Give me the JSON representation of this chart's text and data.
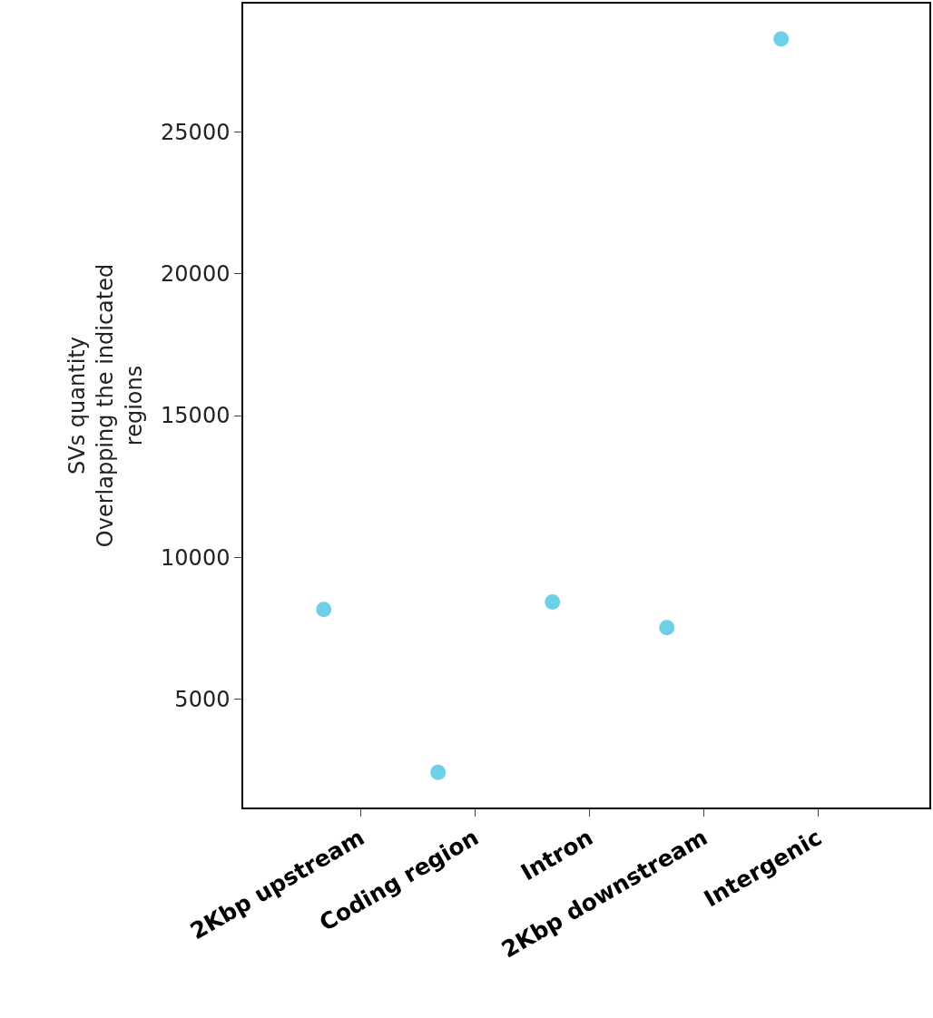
{
  "chart_data": {
    "type": "scatter",
    "ylabel": "SVs quantity\nOverlapping the indicated\nregions",
    "categories": [
      "2Kbp upstream",
      "Coding region",
      "Intron",
      "2Kbp downstream",
      "Intergenic"
    ],
    "values": [
      8160,
      2410,
      8420,
      7520,
      28290
    ],
    "color": "#6dd0e6",
    "marker": "circle",
    "ylim": [
      1170,
      29540
    ],
    "yticks": [
      5000,
      10000,
      15000,
      20000,
      25000
    ],
    "legend": false
  }
}
